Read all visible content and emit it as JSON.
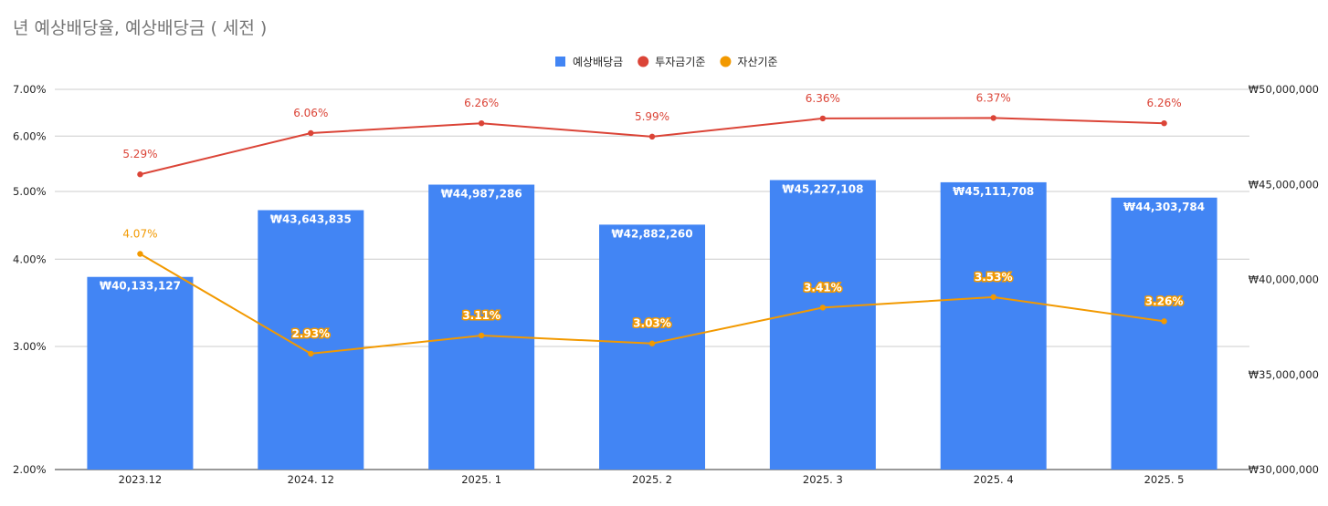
{
  "chart_data": {
    "type": "bar",
    "title": "년 예상배당율, 예상배당금 ( 세전 )",
    "categories": [
      "2023.12",
      "2024. 12",
      "2025. 1",
      "2025. 2",
      "2025. 3",
      "2025. 4",
      "2025. 5"
    ],
    "legend_position": "top-center",
    "grid": true,
    "y_left": {
      "ticks": [
        "7.00%",
        "6.00%",
        "5.00%",
        "4.00%",
        "3.00%",
        "2.00%"
      ],
      "tick_values": [
        7,
        6,
        5,
        4,
        3,
        2
      ],
      "scale": "log",
      "range": [
        2,
        7
      ]
    },
    "y_right": {
      "ticks": [
        "₩50,000,000",
        "₩45,000,000",
        "₩40,000,000",
        "₩35,000,000",
        "₩30,000,000"
      ],
      "tick_values": [
        50000000,
        45000000,
        40000000,
        35000000,
        30000000
      ],
      "range": [
        30000000,
        50000000
      ]
    },
    "series": [
      {
        "name": "예상배당금",
        "type": "bar",
        "axis": "right",
        "color": "#4285f4",
        "values": [
          40133127,
          43643835,
          44987286,
          42882260,
          45227108,
          45111708,
          44303784
        ],
        "labels": [
          "₩40,133,127",
          "₩43,643,835",
          "₩44,987,286",
          "₩42,882,260",
          "₩45,227,108",
          "₩45,111,708",
          "₩44,303,784"
        ]
      },
      {
        "name": "투자금기준",
        "type": "line",
        "axis": "left",
        "color": "#db4437",
        "values": [
          5.29,
          6.06,
          6.26,
          5.99,
          6.36,
          6.37,
          6.26
        ],
        "labels": [
          "5.29%",
          "6.06%",
          "6.26%",
          "5.99%",
          "6.36%",
          "6.37%",
          "6.26%"
        ]
      },
      {
        "name": "자산기준",
        "type": "line",
        "axis": "left",
        "color": "#f29900",
        "values": [
          4.07,
          2.93,
          3.11,
          3.03,
          3.41,
          3.53,
          3.26
        ],
        "labels": [
          "4.07%",
          "2.93%",
          "3.11%",
          "3.03%",
          "3.41%",
          "3.53%",
          "3.26%"
        ]
      }
    ]
  }
}
